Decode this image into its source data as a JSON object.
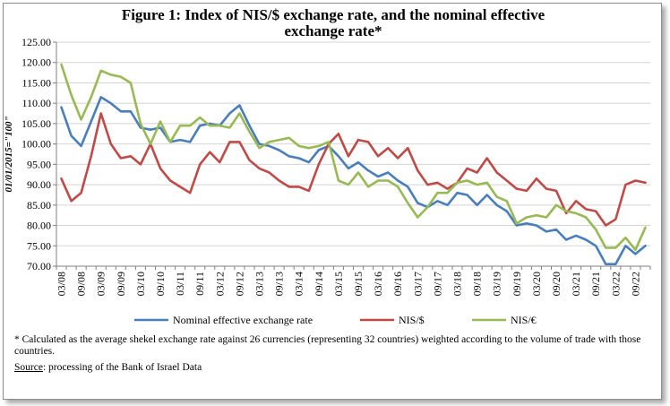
{
  "chart_data": {
    "type": "line",
    "title": "Figure 1:  Index of NIS/$ exchange rate, and the nominal effective exchange rate*",
    "title_lines": [
      "Figure 1:  Index of NIS/$ exchange rate, and the nominal effective",
      "exchange rate*"
    ],
    "ylabel": "01/01/2015=\"100\"",
    "xlabel": "",
    "ylim": [
      70,
      125
    ],
    "yticks": [
      "70.00",
      "75.00",
      "80.00",
      "85.00",
      "90.00",
      "95.00",
      "100.00",
      "105.00",
      "110.00",
      "115.00",
      "120.00",
      "125.00"
    ],
    "x": [
      "03/08",
      "06/08",
      "09/08",
      "12/08",
      "03/09",
      "06/09",
      "09/09",
      "12/09",
      "03/10",
      "06/10",
      "09/10",
      "12/10",
      "03/11",
      "06/11",
      "09/11",
      "12/11",
      "03/12",
      "06/12",
      "09/12",
      "12/12",
      "03/13",
      "06/13",
      "09/13",
      "12/13",
      "03/14",
      "06/14",
      "09/14",
      "12/14",
      "03/15",
      "06/15",
      "09/15",
      "12/15",
      "03/16",
      "06/16",
      "09/16",
      "12/16",
      "03/17",
      "06/17",
      "09/17",
      "12/17",
      "03/18",
      "06/18",
      "09/18",
      "12/18",
      "03/19",
      "06/19",
      "09/19",
      "12/19",
      "03/20",
      "06/20",
      "09/20",
      "12/20",
      "03/21",
      "06/21",
      "09/21",
      "12/21",
      "03/22",
      "06/22",
      "09/22",
      "12/22"
    ],
    "xtick_labels": [
      "03/08",
      "09/08",
      "03/09",
      "09/09",
      "03/10",
      "09/10",
      "03/11",
      "09/11",
      "03/12",
      "09/12",
      "03/13",
      "09/13",
      "03/14",
      "09/14",
      "03/15",
      "09/15",
      "03/16",
      "09/16",
      "03/17",
      "09/17",
      "03/18",
      "09/18",
      "03/19",
      "09/19",
      "03/20",
      "09/20",
      "03/21",
      "09/21",
      "03/22",
      "09/22"
    ],
    "grid": true,
    "legend_position": "bottom",
    "series": [
      {
        "name": "Nominal effective exchange rate",
        "color": "#4a7ebb",
        "values": [
          109.0,
          102.0,
          99.5,
          105.5,
          111.5,
          110.0,
          108.0,
          108.0,
          104.0,
          103.5,
          104.0,
          100.5,
          101.0,
          100.5,
          104.5,
          105.0,
          104.5,
          107.5,
          109.5,
          104.5,
          100.0,
          99.5,
          98.5,
          97.0,
          96.5,
          95.5,
          98.5,
          99.5,
          97.0,
          94.0,
          95.5,
          93.5,
          92.0,
          93.0,
          91.0,
          89.5,
          85.5,
          84.5,
          86.0,
          85.0,
          88.0,
          87.5,
          85.0,
          87.5,
          85.0,
          83.5,
          80.0,
          80.5,
          80.0,
          78.5,
          79.0,
          76.5,
          77.5,
          76.5,
          75.0,
          70.5,
          70.5,
          75.0,
          73.0,
          75.0
        ]
      },
      {
        "name": "NIS/$",
        "color": "#be4b48",
        "values": [
          91.5,
          86.0,
          88.0,
          97.0,
          107.5,
          100.0,
          96.5,
          97.0,
          95.0,
          100.0,
          94.0,
          91.0,
          89.5,
          88.0,
          95.0,
          98.0,
          95.5,
          100.5,
          100.5,
          96.0,
          94.0,
          93.0,
          91.0,
          89.5,
          89.5,
          88.5,
          95.0,
          100.0,
          102.5,
          97.0,
          101.0,
          100.5,
          97.0,
          99.0,
          96.5,
          99.0,
          93.5,
          90.0,
          90.5,
          89.0,
          90.5,
          94.0,
          93.0,
          96.5,
          93.0,
          91.0,
          89.0,
          88.5,
          91.5,
          89.0,
          88.5,
          83.0,
          86.0,
          84.0,
          83.5,
          80.0,
          81.5,
          90.0,
          91.0,
          90.5
        ]
      },
      {
        "name": "NIS/€",
        "color": "#98b954",
        "values": [
          119.5,
          112.0,
          106.0,
          111.5,
          118.0,
          117.0,
          116.5,
          115.0,
          105.0,
          100.0,
          105.5,
          100.5,
          104.5,
          104.5,
          106.5,
          104.5,
          104.5,
          104.0,
          107.5,
          103.0,
          99.0,
          100.5,
          101.0,
          101.5,
          99.5,
          99.0,
          99.5,
          100.5,
          91.0,
          90.0,
          93.0,
          89.5,
          91.0,
          91.0,
          89.5,
          85.5,
          82.0,
          84.5,
          88.0,
          88.0,
          90.5,
          91.0,
          90.0,
          90.5,
          87.0,
          86.0,
          80.5,
          82.0,
          82.5,
          82.0,
          85.0,
          83.5,
          83.0,
          82.0,
          79.0,
          74.5,
          74.5,
          77.0,
          74.0,
          79.5
        ]
      }
    ]
  },
  "footnote": "* Calculated as the average shekel exchange rate against 26 currencies (representing 32 countries) weighted according to the volume of trade with those countries.",
  "source": {
    "label": "Source",
    "text": ": processing of the Bank of Israel Data"
  }
}
